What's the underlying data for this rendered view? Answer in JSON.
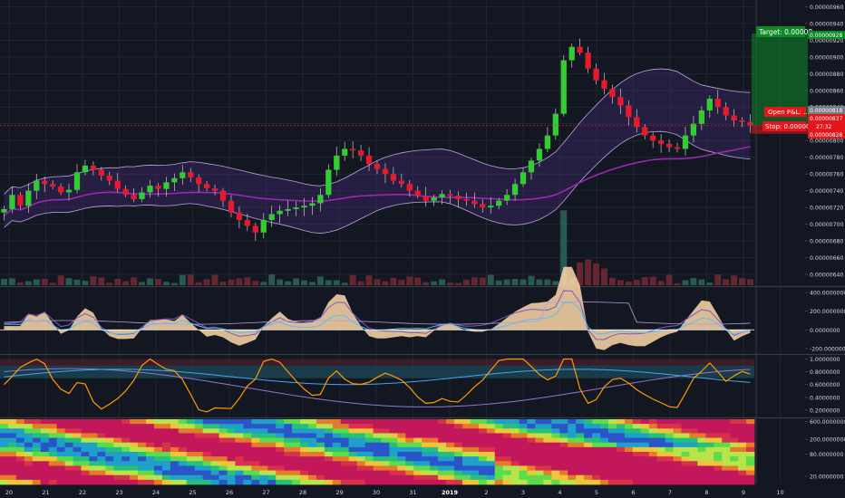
{
  "price_axis": {
    "ticks": [
      "0.00000960",
      "0.00000940",
      "0.00000920",
      "0.00000900",
      "0.00000880",
      "0.00000860",
      "0.00000840",
      "0.00000820",
      "0.00000800",
      "0.00000780",
      "0.00000760",
      "0.00000740",
      "0.00000720",
      "0.00000700",
      "0.00000680",
      "0.00000660",
      "0.00000640"
    ],
    "tick_values": [
      960,
      940,
      920,
      900,
      880,
      860,
      840,
      820,
      800,
      780,
      760,
      740,
      720,
      700,
      680,
      660,
      640
    ],
    "range": [
      627,
      968
    ],
    "unit_note": "values are in units of 1e-8"
  },
  "time_axis": {
    "labels": [
      "20",
      "21",
      "22",
      "23",
      "24",
      "25",
      "26",
      "27",
      "28",
      "29",
      "30",
      "31",
      "2019",
      "2",
      "3",
      "4",
      "5",
      "6",
      "7",
      "8",
      "9",
      "10"
    ]
  },
  "position_tool": {
    "target_label": "Target: 0.00008",
    "target_price": "0.00000928",
    "pnl_label": "Open P&L: ...",
    "current_price": "0.00000818",
    "price_2": "0.00000837",
    "countdown": "27:32",
    "stop_label": "Stop: 0.00000",
    "stop_price": "0.00000828",
    "target_value": 928,
    "entry_value": 818,
    "stop_value": 808
  },
  "oscillator_1": {
    "ticks": [
      "400.0000000",
      "200.0000000",
      "0.0000000",
      "-200.0000000"
    ],
    "tick_values": [
      400,
      200,
      0,
      -200
    ],
    "range": [
      -250,
      450
    ]
  },
  "oscillator_2": {
    "ticks": [
      "1.0000000",
      "0.8000000",
      "0.6000000",
      "0.4000000",
      "0.2000000"
    ],
    "tick_values": [
      1.0,
      0.8,
      0.6,
      0.4,
      0.2
    ],
    "range": [
      0.1,
      1.05
    ]
  },
  "heatmap_panel": {
    "ticks": [
      "600.0000000",
      "200.0000000",
      "80.0000000",
      "20.0000000"
    ],
    "tick_values": [
      600,
      200,
      80,
      20
    ],
    "scale": "log",
    "range": [
      12,
      700
    ]
  },
  "colors": {
    "background": "#131722",
    "grid": "#2a2e39",
    "up": "#26a69a",
    "up_candle": "#33cc33",
    "down_candle": "#e8192c",
    "ma_purple": "#9c27b0",
    "band": "#b7a7d8",
    "target_green": "#0c8a26",
    "stop_red": "#e3171b",
    "price_tag_grey": "#787b86",
    "orange": "#ff9800",
    "axis_text": "#d1d4dc"
  },
  "chart_data": {
    "type": "candlestick",
    "series": [
      {
        "name": "",
        "values": [
          718,
          735,
          722,
          740,
          752,
          748,
          745,
          738,
          741,
          762,
          770,
          765,
          758,
          752,
          742,
          735,
          730,
          738,
          746,
          742,
          750,
          755,
          762,
          756,
          748,
          743,
          740,
          728,
          714,
          705,
          698,
          690,
          705,
          712,
          716,
          718,
          720,
          722,
          725,
          735,
          765,
          782,
          790,
          788,
          782,
          772,
          766,
          760,
          752,
          748,
          740,
          734,
          728,
          732,
          736,
          734,
          730,
          728,
          724,
          720,
          722,
          728,
          735,
          748,
          762,
          776,
          790,
          806,
          832,
          896,
          912,
          905,
          886,
          872,
          862,
          852,
          842,
          828,
          816,
          806,
          800,
          796,
          792,
          790,
          806,
          820,
          836,
          850,
          840,
          830,
          824,
          822,
          818
        ]
      }
    ]
  }
}
